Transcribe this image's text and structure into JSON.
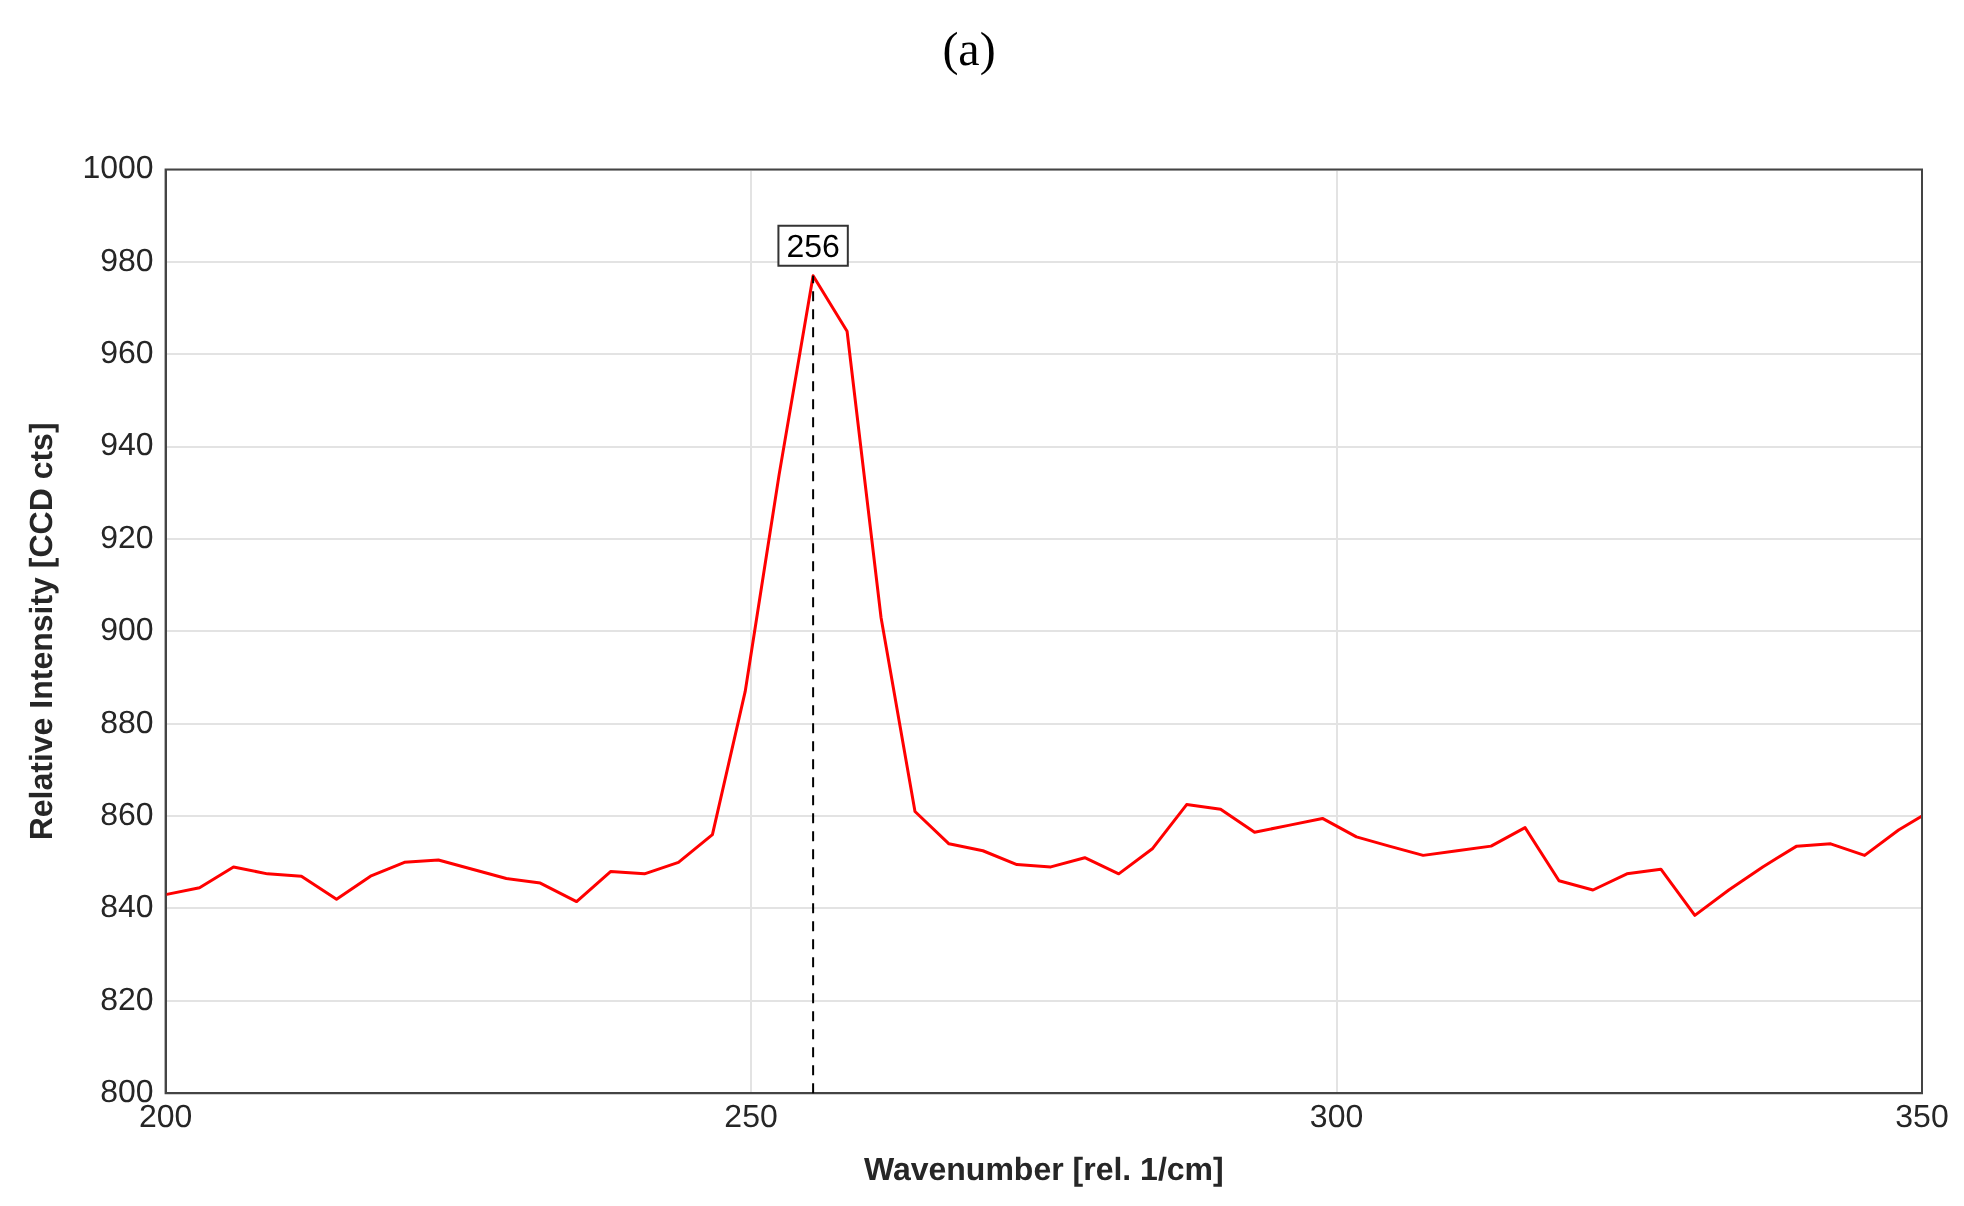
{
  "chart_data": {
    "type": "line",
    "title": "(a)",
    "xlabel": "Wavenumber [rel. 1/cm]",
    "ylabel": "Relative Intensity [CCD cts]",
    "xlim": [
      200,
      350
    ],
    "xticks": [
      200,
      250,
      300,
      350
    ],
    "ylim": [
      800,
      1000
    ],
    "yticks": [
      800,
      820,
      840,
      860,
      880,
      900,
      920,
      940,
      960,
      980,
      1000
    ],
    "grid": true,
    "marker": "none",
    "line_style": "solid",
    "series": [
      {
        "color": "#ff0000",
        "x": [
          200,
          202.9,
          205.8,
          208.7,
          211.6,
          214.6,
          217.5,
          220.4,
          223.3,
          226.2,
          229.1,
          232.0,
          235.1,
          238.0,
          240.9,
          243.8,
          246.7,
          249.5,
          252.4,
          255.3,
          258.2,
          261.1,
          264.0,
          266.9,
          269.8,
          272.7,
          275.6,
          278.5,
          281.4,
          284.3,
          287.2,
          290.1,
          293.0,
          295.9,
          298.8,
          301.7,
          304.5,
          307.4,
          310.3,
          313.2,
          316.1,
          319.0,
          321.9,
          324.8,
          327.7,
          330.6,
          333.5,
          336.4,
          339.3,
          342.2,
          345.1,
          348.0,
          350
        ],
        "values": [
          843,
          844.5,
          849,
          847.5,
          847,
          842,
          847,
          850,
          850.5,
          848.5,
          846.5,
          845.5,
          841.5,
          848,
          847.5,
          850,
          856,
          887,
          934,
          977,
          965,
          903,
          861,
          854,
          852.5,
          849.5,
          849,
          851,
          847.5,
          853,
          862.5,
          861.5,
          856.5,
          858,
          859.5,
          855.5,
          853.5,
          851.5,
          852.5,
          853.5,
          857.5,
          846,
          844,
          847.5,
          848.5,
          838.5,
          844,
          849,
          853.5,
          854,
          851.5,
          857,
          860
        ]
      }
    ],
    "ref_lines": [
      {
        "axis": "x",
        "value": 255.3,
        "line_style": "dashed",
        "color": "#000000"
      }
    ],
    "annotations": [
      {
        "text": "256",
        "x": 255.3,
        "y": 977
      }
    ]
  }
}
